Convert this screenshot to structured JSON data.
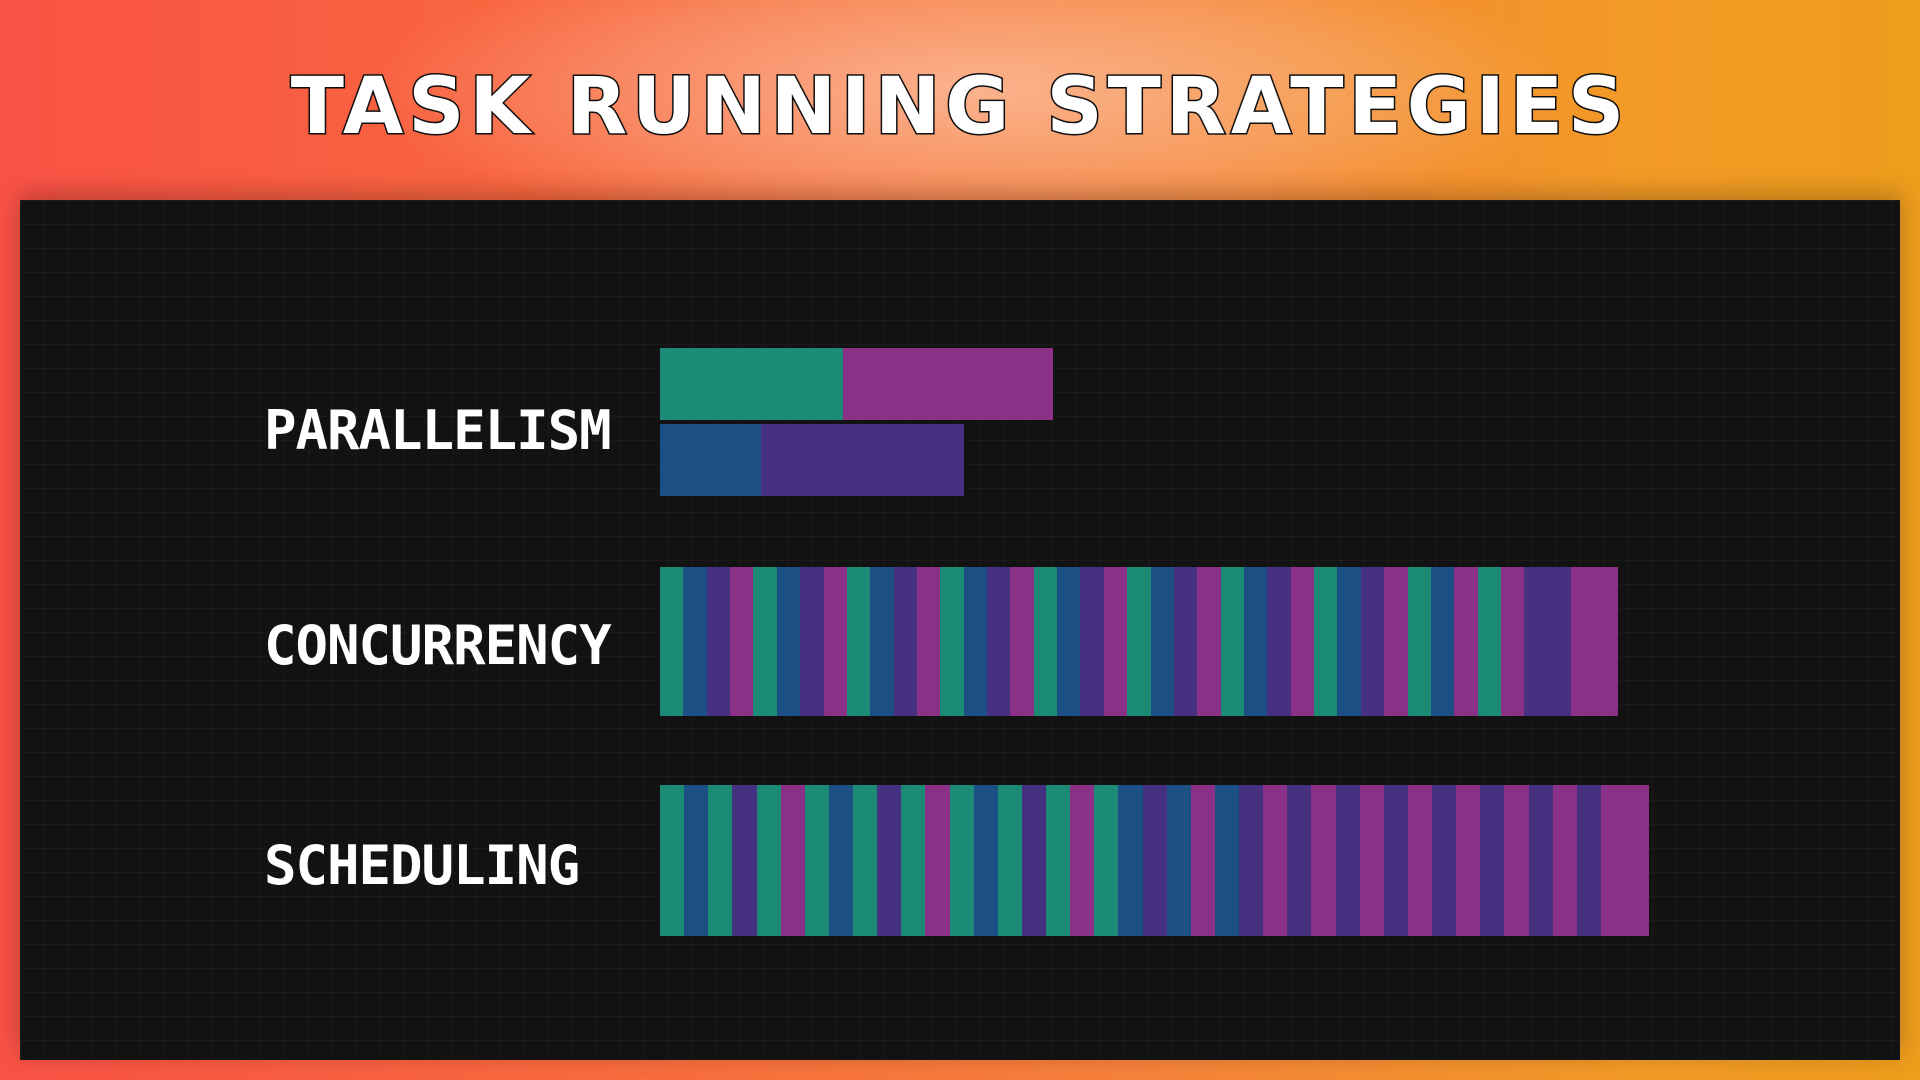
{
  "title": "TASK RUNNING STRATEGIES",
  "colors": {
    "green": "#1b8b75",
    "blue": "#1c4f83",
    "purple": "#463080",
    "magenta": "#8a3086",
    "panel": "#121212"
  },
  "rows": [
    {
      "label": "PARALLELISM",
      "tracks": [
        [
          "green",
          "green",
          "green",
          "green",
          "green",
          "green",
          "green",
          "magenta",
          "magenta",
          "magenta",
          "magenta",
          "magenta",
          "magenta",
          "magenta",
          "magenta"
        ],
        [
          "blue",
          "blue",
          "blue",
          "blue",
          "purple",
          "purple",
          "purple",
          "purple",
          "purple",
          "purple",
          "purple",
          "purple"
        ]
      ]
    },
    {
      "label": "CONCURRENCY",
      "tracks": [
        [
          "green",
          "blue",
          "purple",
          "magenta",
          "green",
          "blue",
          "purple",
          "magenta",
          "green",
          "blue",
          "purple",
          "magenta",
          "green",
          "blue",
          "purple",
          "magenta",
          "green",
          "blue",
          "purple",
          "magenta",
          "green",
          "blue",
          "purple",
          "magenta",
          "green",
          "blue",
          "purple",
          "magenta",
          "green",
          "blue",
          "purple",
          "magenta",
          "green",
          "blue",
          "magenta",
          "green",
          "magenta",
          "purple",
          "purple",
          "magenta",
          "magenta"
        ]
      ]
    },
    {
      "label": "SCHEDULING",
      "tracks": [
        [
          "green",
          "blue",
          "green",
          "purple",
          "green",
          "magenta",
          "green",
          "blue",
          "green",
          "purple",
          "green",
          "magenta",
          "green",
          "blue",
          "green",
          "purple",
          "green",
          "magenta",
          "green",
          "blue",
          "purple",
          "blue",
          "magenta",
          "blue",
          "purple",
          "magenta",
          "purple",
          "magenta",
          "purple",
          "magenta",
          "purple",
          "magenta",
          "purple",
          "magenta",
          "purple",
          "magenta",
          "purple",
          "magenta",
          "purple",
          "magenta",
          "magenta"
        ]
      ]
    }
  ]
}
